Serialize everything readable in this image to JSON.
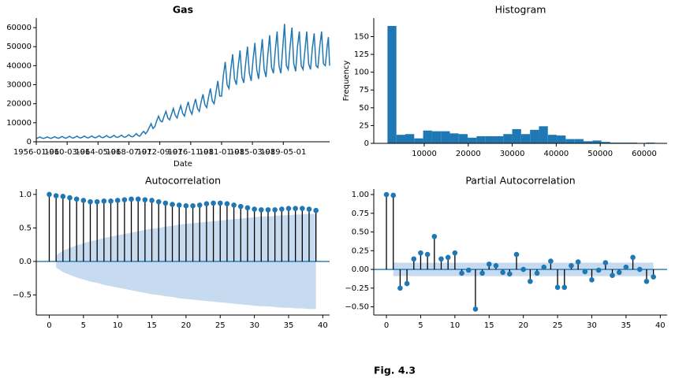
{
  "chart_data": [
    {
      "type": "line",
      "title": "Gas",
      "title_weight": "bold",
      "xlabel": "Date",
      "color": "#1f77b4",
      "x": [
        "1956-01-01",
        "1956-04-01",
        "1956-07-01",
        "1956-10-01",
        "1957-01-01",
        "1957-04-01",
        "1957-07-01",
        "1957-10-01",
        "1958-01-01",
        "1958-04-01",
        "1958-07-01",
        "1958-10-01",
        "1959-01-01",
        "1959-04-01",
        "1959-07-01",
        "1959-10-01",
        "1960-01-01",
        "1960-04-01",
        "1960-07-01",
        "1960-10-01",
        "1961-01-01",
        "1961-04-01",
        "1961-07-01",
        "1961-10-01",
        "1962-01-01",
        "1962-04-01",
        "1962-07-01",
        "1962-10-01",
        "1963-01-01",
        "1963-04-01",
        "1963-07-01",
        "1963-10-01",
        "1964-01-01",
        "1964-04-01",
        "1964-07-01",
        "1964-10-01",
        "1965-01-01",
        "1965-04-01",
        "1965-07-01",
        "1965-10-01",
        "1966-01-01",
        "1966-04-01",
        "1966-07-01",
        "1966-10-01",
        "1967-01-01",
        "1967-04-01",
        "1967-07-01",
        "1967-10-01",
        "1968-01-01",
        "1968-04-01",
        "1968-07-01",
        "1968-10-01",
        "1969-01-01",
        "1969-04-01",
        "1969-07-01",
        "1969-10-01",
        "1970-01-01",
        "1970-04-01",
        "1970-07-01",
        "1970-10-01",
        "1971-01-01",
        "1971-04-01",
        "1971-07-01",
        "1971-10-01",
        "1972-01-01",
        "1972-04-01",
        "1972-07-01",
        "1972-10-01",
        "1973-01-01",
        "1973-04-01",
        "1973-07-01",
        "1973-10-01",
        "1974-01-01",
        "1974-04-01",
        "1974-07-01",
        "1974-10-01",
        "1975-01-01",
        "1975-04-01",
        "1975-07-01",
        "1975-10-01",
        "1976-01-01",
        "1976-04-01",
        "1976-07-01",
        "1976-10-01",
        "1977-01-01",
        "1977-04-01",
        "1977-07-01",
        "1977-10-01",
        "1978-01-01",
        "1978-04-01",
        "1978-07-01",
        "1978-10-01",
        "1979-01-01",
        "1979-04-01",
        "1979-07-01",
        "1979-10-01",
        "1980-01-01",
        "1980-04-01",
        "1980-07-01",
        "1980-10-01",
        "1981-01-01",
        "1981-04-01",
        "1981-07-01",
        "1981-10-01",
        "1982-01-01",
        "1982-04-01",
        "1982-07-01",
        "1982-10-01",
        "1983-01-01",
        "1983-04-01",
        "1983-07-01",
        "1983-10-01",
        "1984-01-01",
        "1984-04-01",
        "1984-07-01",
        "1984-10-01",
        "1985-01-01",
        "1985-04-01",
        "1985-07-01",
        "1985-10-01",
        "1986-01-01",
        "1986-04-01",
        "1986-07-01",
        "1986-10-01",
        "1987-01-01",
        "1987-04-01",
        "1987-07-01",
        "1987-10-01",
        "1988-01-01",
        "1988-04-01",
        "1988-07-01",
        "1988-10-01",
        "1989-01-01",
        "1989-04-01",
        "1989-07-01",
        "1989-10-01",
        "1990-01-01",
        "1990-04-01",
        "1990-07-01",
        "1990-10-01",
        "1991-01-01",
        "1991-04-01",
        "1991-07-01",
        "1991-10-01",
        "1992-01-01",
        "1992-04-01",
        "1992-07-01",
        "1992-10-01",
        "1993-01-01",
        "1993-04-01",
        "1993-07-01",
        "1993-10-01",
        "1994-01-01",
        "1994-04-01",
        "1994-07-01",
        "1994-10-01",
        "1995-01-01",
        "1995-04-01",
        "1995-06-01",
        "1995-08-01"
      ],
      "values": [
        1700,
        2100,
        2500,
        2000,
        1750,
        2150,
        2550,
        2050,
        1800,
        2200,
        2700,
        2100,
        1850,
        2300,
        2800,
        2150,
        1900,
        2350,
        2900,
        2200,
        1950,
        2400,
        3000,
        2250,
        2000,
        2450,
        3050,
        2300,
        2050,
        2500,
        3100,
        2350,
        2100,
        2600,
        3200,
        2400,
        2150,
        2650,
        3300,
        2450,
        2200,
        2750,
        3400,
        2500,
        2300,
        2850,
        3500,
        2600,
        2400,
        3000,
        3700,
        2800,
        2600,
        3300,
        4300,
        3200,
        3000,
        4500,
        5500,
        4200,
        5500,
        7500,
        9500,
        7000,
        8000,
        11000,
        13500,
        11000,
        10500,
        13500,
        16000,
        12500,
        11500,
        14500,
        17500,
        14000,
        12500,
        16000,
        19000,
        15000,
        13500,
        17500,
        21000,
        16500,
        14500,
        19000,
        22500,
        17500,
        16000,
        21000,
        25000,
        19500,
        18000,
        23500,
        28000,
        21500,
        20000,
        26000,
        32000,
        24000,
        24000,
        35000,
        42000,
        30000,
        28000,
        38000,
        46000,
        33000,
        30000,
        40000,
        48000,
        34000,
        31000,
        41000,
        50000,
        36000,
        32000,
        43000,
        52000,
        38000,
        33000,
        44000,
        54000,
        38000,
        34000,
        46000,
        56000,
        39000,
        36000,
        48000,
        58000,
        40000,
        36000,
        49000,
        62000,
        40000,
        38000,
        50000,
        60000,
        41000,
        37000,
        50000,
        58000,
        40000,
        38000,
        48000,
        58000,
        41000,
        38000,
        49000,
        57000,
        40000,
        39000,
        50000,
        58000,
        41000,
        40000,
        50000,
        55000,
        40000
      ],
      "xlim": [
        "1956-01-01",
        "1995-08-01"
      ],
      "xticks": [
        "1956-01-01",
        "1960-03-01",
        "1964-05-01",
        "1968-07-01",
        "1972-09-01",
        "1976-11-01",
        "1981-01-01",
        "1985-03-01",
        "1989-05-01"
      ],
      "ylim": [
        0,
        65000
      ],
      "yticks": [
        0,
        10000,
        20000,
        30000,
        40000,
        50000,
        60000
      ]
    },
    {
      "type": "histogram",
      "title": "Histogram",
      "ylabel": "Frequency",
      "color": "#1f77b4",
      "bins": [
        1646,
        3671,
        5696,
        7721,
        9746,
        11771,
        13796,
        15821,
        17846,
        19871,
        21896,
        23921,
        25946,
        27971,
        29996,
        32021,
        34046,
        36071,
        38096,
        40121,
        42146,
        44171,
        46196,
        48221,
        50246,
        52271,
        54296,
        56321,
        58346,
        60371,
        62396
      ],
      "counts": [
        165,
        12,
        13,
        7,
        18,
        17,
        17,
        14,
        13,
        8,
        10,
        10,
        10,
        13,
        20,
        13,
        19,
        24,
        12,
        11,
        6,
        6,
        3,
        4,
        2,
        1,
        1,
        1,
        0,
        1
      ],
      "xlim": [
        -1470,
        65200
      ],
      "xticks": [
        10000,
        20000,
        30000,
        40000,
        50000,
        60000
      ],
      "ylim": [
        0,
        176
      ],
      "yticks": [
        0,
        25,
        50,
        75,
        100,
        125,
        150
      ]
    },
    {
      "type": "stem",
      "title": "Autocorrelation",
      "color": "#1f77b4",
      "band_color": "#c6dbef",
      "values": [
        1,
        0.98,
        0.97,
        0.95,
        0.93,
        0.91,
        0.89,
        0.89,
        0.9,
        0.9,
        0.91,
        0.92,
        0.93,
        0.93,
        0.92,
        0.91,
        0.89,
        0.87,
        0.85,
        0.84,
        0.83,
        0.83,
        0.84,
        0.86,
        0.87,
        0.87,
        0.86,
        0.84,
        0.82,
        0.8,
        0.78,
        0.77,
        0.77,
        0.77,
        0.78,
        0.79,
        0.79,
        0.79,
        0.78,
        0.76
      ],
      "band": [
        null,
        0.09,
        0.16,
        0.2,
        0.24,
        0.27,
        0.3,
        0.32,
        0.35,
        0.37,
        0.39,
        0.41,
        0.43,
        0.45,
        0.47,
        0.49,
        0.5,
        0.52,
        0.53,
        0.55,
        0.56,
        0.57,
        0.58,
        0.59,
        0.6,
        0.61,
        0.62,
        0.63,
        0.64,
        0.65,
        0.66,
        0.67,
        0.67,
        0.68,
        0.69,
        0.69,
        0.7,
        0.7,
        0.71,
        0.71
      ],
      "xlim": [
        -1.9,
        41
      ],
      "xticks": [
        0,
        5,
        10,
        15,
        20,
        25,
        30,
        35,
        40
      ],
      "ylim": [
        -0.8,
        1.08
      ],
      "yticks": [
        {
          "value": -0.5,
          "label": "−0.5"
        },
        {
          "value": 0,
          "label": "0.0"
        },
        {
          "value": 0.5,
          "label": "0.5"
        },
        {
          "value": 1,
          "label": "1.0"
        }
      ]
    },
    {
      "type": "stem",
      "title": "Partial Autocorrelation",
      "color": "#1f77b4",
      "band_color": "#c6dbef",
      "values": [
        1,
        0.99,
        -0.25,
        -0.19,
        0.14,
        0.22,
        0.2,
        0.44,
        0.14,
        0.16,
        0.22,
        -0.05,
        -0.01,
        -0.53,
        -0.05,
        0.07,
        0.05,
        -0.04,
        -0.06,
        0.2,
        0,
        -0.16,
        -0.05,
        0.03,
        0.11,
        -0.24,
        -0.24,
        0.05,
        0.1,
        -0.03,
        -0.14,
        -0.01,
        0.09,
        -0.08,
        -0.04,
        0.03,
        0.16,
        0,
        -0.16,
        -0.1
      ],
      "band": [
        null,
        0.09,
        0.09,
        0.09,
        0.09,
        0.09,
        0.09,
        0.09,
        0.09,
        0.09,
        0.09,
        0.09,
        0.09,
        0.09,
        0.09,
        0.09,
        0.09,
        0.09,
        0.09,
        0.09,
        0.09,
        0.09,
        0.09,
        0.09,
        0.09,
        0.09,
        0.09,
        0.09,
        0.09,
        0.09,
        0.09,
        0.09,
        0.09,
        0.09,
        0.09,
        0.09,
        0.09,
        0.09,
        0.09,
        0.09
      ],
      "xlim": [
        -1.85,
        41
      ],
      "xticks": [
        0,
        5,
        10,
        15,
        20,
        25,
        30,
        35,
        40
      ],
      "ylim": [
        -0.61,
        1.074
      ],
      "yticks": [
        {
          "value": -0.5,
          "label": "−0.50"
        },
        {
          "value": -0.25,
          "label": "−0.25"
        },
        {
          "value": 0,
          "label": "0.00"
        },
        {
          "value": 0.25,
          "label": "0.25"
        },
        {
          "value": 0.5,
          "label": "0.50"
        },
        {
          "value": 0.75,
          "label": "0.75"
        },
        {
          "value": 1,
          "label": "1.00"
        }
      ]
    }
  ],
  "caption": "Fig. 4.3"
}
